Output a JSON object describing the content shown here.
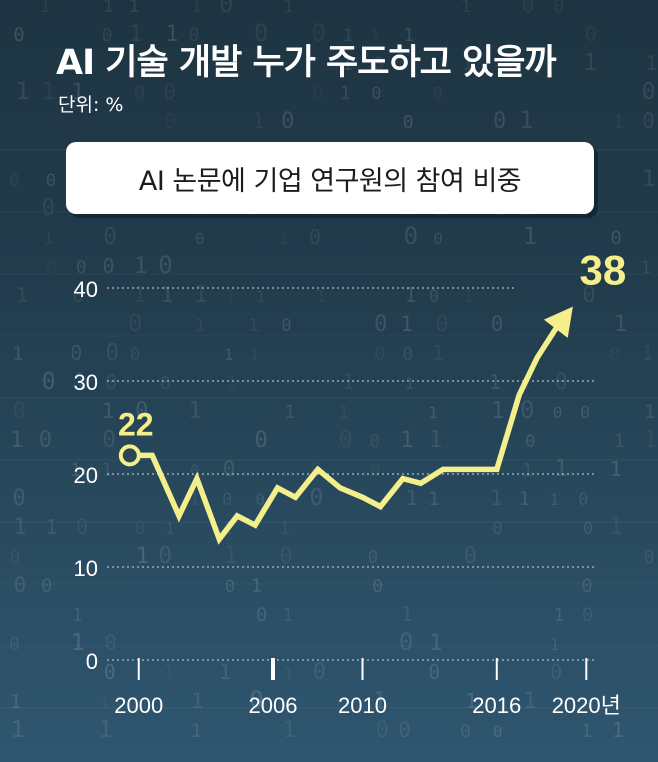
{
  "header": {
    "title": "AI 기술 개발 누가 주도하고 있을까",
    "unit": "단위: %",
    "subtitle": "AI 논문에 기업 연구원의 참여 비중"
  },
  "colors": {
    "line": "#f4ef8a",
    "label": "#f4ef8a",
    "axis_text": "#ffffff",
    "grid": "#dfe6ea"
  },
  "chart_data": {
    "type": "line",
    "title": "AI 논문에 기업 연구원의 참여 비중",
    "ylabel": "단위: %",
    "ylim": [
      0,
      40
    ],
    "yticks": [
      "0",
      "10",
      "20",
      "30",
      "40"
    ],
    "xticks": [
      {
        "label": "2000",
        "x": 2000
      },
      {
        "label": "2006",
        "x": 2006
      },
      {
        "label": "2010",
        "x": 2010
      },
      {
        "label": "2016",
        "x": 2016
      },
      {
        "label": "2020년",
        "x": 2020
      }
    ],
    "grid": true,
    "series": [
      {
        "x": [
          1999.6,
          2000.6,
          2001.8,
          2002.6,
          2003.6,
          2004.4,
          2005.2,
          2006.2,
          2007.0,
          2008.0,
          2009.0,
          2010.0,
          2010.8,
          2011.8,
          2012.6,
          2013.6,
          2014.4,
          2015.4,
          2016.0,
          2017.0,
          2017.8,
          2018.6,
          2019.4
        ],
        "y": [
          22,
          22,
          15.5,
          19.5,
          13,
          15.5,
          14.5,
          18.5,
          17.5,
          20.5,
          18.5,
          17.5,
          16.5,
          19.5,
          19,
          20.5,
          20.5,
          20.5,
          20.5,
          28.5,
          32.5,
          35.5,
          38
        ]
      }
    ],
    "annotations": [
      {
        "text": "22",
        "x": 1999.6,
        "y": 22
      },
      {
        "text": "38",
        "x": 2019.4,
        "y": 38
      }
    ]
  }
}
